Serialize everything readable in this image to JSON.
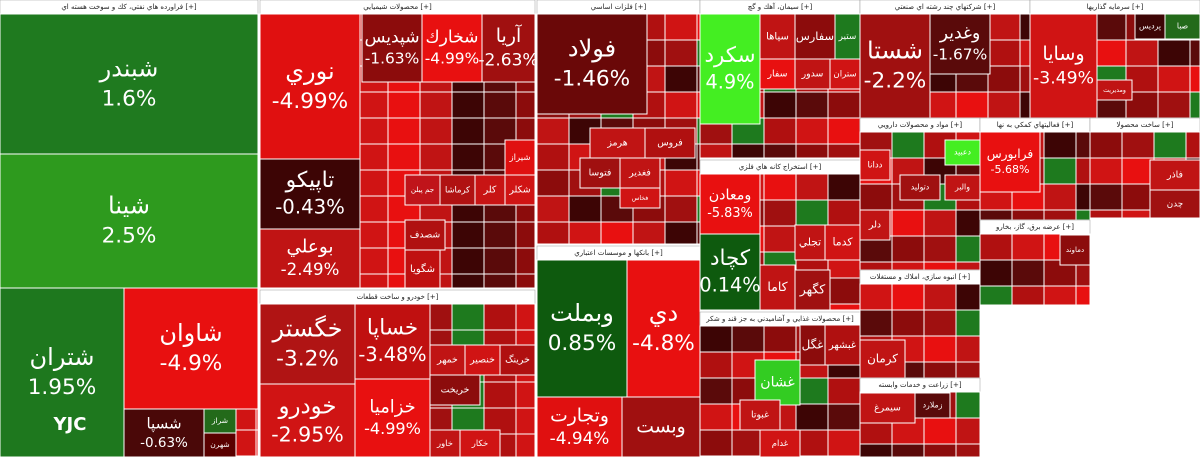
{
  "watermark": "YJC",
  "sectors": [
    {
      "title": "فراورده هاي نفتي، كك و سوخت هسته اي [+]",
      "tiles": [
        {
          "label": "شبندر",
          "change": "1.6%",
          "color": "#1f7a1f"
        },
        {
          "label": "شينا",
          "change": "2.5%",
          "color": "#2e9a1e"
        },
        {
          "label": "شتران",
          "change": "1.95%",
          "color": "#1e781e"
        },
        {
          "label": "شاوان",
          "change": "-4.9%",
          "color": "#e81010"
        },
        {
          "label": "شسپا",
          "change": "-0.63%",
          "color": "#4a0808"
        },
        {
          "label": "شراز",
          "color": "#236a1a"
        },
        {
          "label": "شهرن",
          "color": "#5a0000"
        }
      ]
    },
    {
      "title": "محصولات شيميايي [+]",
      "tiles": [
        {
          "label": "نوري",
          "change": "-4.99%",
          "color": "#e01010"
        },
        {
          "label": "تاپيكو",
          "change": "-0.43%",
          "color": "#3d0505"
        },
        {
          "label": "بوعلي",
          "change": "-2.49%",
          "color": "#c01414"
        },
        {
          "label": "شپديس",
          "change": "-1.63%",
          "color": "#8c0c0c"
        },
        {
          "label": "شخارك",
          "change": "-4.99%",
          "color": "#e81010"
        },
        {
          "label": "آريا",
          "change": "-2.63%",
          "color": "#a01010"
        },
        {
          "label": "جم پيلن",
          "color": "#c0141a"
        },
        {
          "label": "كرماشا",
          "color": "#b01212"
        },
        {
          "label": "كلر",
          "color": "#c81414"
        },
        {
          "label": "شكلر",
          "color": "#d01414"
        },
        {
          "label": "شيراز",
          "color": "#e01010"
        },
        {
          "label": "شصدف",
          "color": "#b01010"
        },
        {
          "label": "شگويا",
          "color": "#c01010"
        }
      ]
    },
    {
      "title": "خودرو و ساخت قطعات [+]",
      "tiles": [
        {
          "label": "خگستر",
          "change": "-3.2%",
          "color": "#b01414"
        },
        {
          "label": "خودرو",
          "change": "-2.95%",
          "color": "#d01414"
        },
        {
          "label": "خساپا",
          "change": "-3.48%",
          "color": "#c01010"
        },
        {
          "label": "خزاميا",
          "change": "-4.99%",
          "color": "#e81010"
        },
        {
          "label": "خمهر",
          "color": "#c01414"
        },
        {
          "label": "خنصير",
          "color": "#d01414"
        },
        {
          "label": "خرينگ",
          "color": "#b01010"
        },
        {
          "label": "خريخت",
          "color": "#8c0c0c"
        },
        {
          "label": "خاور",
          "color": "#c01414"
        },
        {
          "label": "خكار",
          "color": "#d01414"
        }
      ]
    },
    {
      "title": "فلزات اساسي [+]",
      "tiles": [
        {
          "label": "فولاد",
          "change": "-1.46%",
          "color": "#6a0808"
        },
        {
          "label": "هرمز",
          "color": "#c01414"
        },
        {
          "label": "فروس",
          "color": "#b01010"
        },
        {
          "label": "فتوسا",
          "color": "#a01010"
        },
        {
          "label": "فغدير",
          "color": "#c01414"
        },
        {
          "label": "فخاس",
          "color": "#d01414"
        }
      ]
    },
    {
      "title": "بانكها و موسسات اعتباري [+]",
      "tiles": [
        {
          "label": "وبملت",
          "change": "0.85%",
          "color": "#0e5a0e"
        },
        {
          "label": "دي",
          "change": "-4.8%",
          "color": "#e81010"
        },
        {
          "label": "وتجارت",
          "change": "-4.94%",
          "color": "#e01010"
        },
        {
          "label": "وبست",
          "color": "#a01010"
        }
      ]
    },
    {
      "title": "سيمان، آهك و گچ [+]",
      "tiles": [
        {
          "label": "سكرد",
          "change": "4.9%",
          "color": "#44ee22"
        },
        {
          "label": "سياها",
          "color": "#c01414"
        },
        {
          "label": "سفارس",
          "color": "#8c0c0c"
        },
        {
          "label": "ستير",
          "color": "#1e7a1e"
        },
        {
          "label": "سفار",
          "color": "#e81010"
        },
        {
          "label": "سدور",
          "color": "#c01414"
        },
        {
          "label": "ستران",
          "color": "#d01414"
        }
      ]
    },
    {
      "title": "استخراج كانه هاي فلزي [+]",
      "tiles": [
        {
          "label": "ومعادن",
          "change": "-5.83%",
          "color": "#e81010"
        },
        {
          "label": "كچاد",
          "change": "0.14%",
          "color": "#0e5a0e"
        },
        {
          "label": "تجلي",
          "color": "#c01414"
        },
        {
          "label": "كدما",
          "color": "#d01414"
        },
        {
          "label": "كاما",
          "color": "#c01414"
        },
        {
          "label": "كگهر",
          "color": "#a01010"
        }
      ]
    },
    {
      "title": "محصولات غذايي و آشاميدني به جز قند و شكر [+]",
      "tiles": [
        {
          "label": "غشان",
          "color": "#33cc22"
        },
        {
          "label": "غگل",
          "color": "#8c0c0c"
        },
        {
          "label": "غبشهر",
          "color": "#b01010"
        },
        {
          "label": "غبوتا",
          "color": "#c01414"
        },
        {
          "label": "غدام",
          "color": "#d01414"
        }
      ]
    },
    {
      "title": "شركتهاي چند رشته اي صنعتي [+]",
      "tiles": [
        {
          "label": "شستا",
          "change": "-2.2%",
          "color": "#a01010"
        },
        {
          "label": "وغدير",
          "change": "-1.67%",
          "color": "#5a0a0a"
        }
      ]
    },
    {
      "title": "سرمايه گذاريها [+]",
      "tiles": [
        {
          "label": "وسايا",
          "change": "-3.49%",
          "color": "#d01414"
        },
        {
          "label": "پرديس",
          "color": "#3d0505"
        },
        {
          "label": "صبا",
          "color": "#236a1a"
        },
        {
          "label": "ومديريت",
          "color": "#c01414"
        }
      ]
    },
    {
      "title": "مواد و محصولات دارويي [+]",
      "tiles": [
        {
          "label": "دعبيد",
          "color": "#44ee22"
        },
        {
          "label": "والبر",
          "color": "#c01414"
        },
        {
          "label": "دتوليد",
          "color": "#a01010"
        },
        {
          "label": "ددانا",
          "color": "#d01414"
        },
        {
          "label": "دلر",
          "color": "#c01414"
        }
      ]
    },
    {
      "title": "فعاليتهاي كمكي به نها [+]",
      "tiles": [
        {
          "label": "فرابورس",
          "change": "-5.68%",
          "color": "#e81010"
        }
      ]
    },
    {
      "title": "ساخت محصولا [+]",
      "tiles": [
        {
          "label": "فاذر",
          "color": "#c01414"
        },
        {
          "label": "چدن",
          "color": "#a01010"
        }
      ]
    },
    {
      "title": "انبوه سازي، املاك و مستغلات [+]",
      "tiles": [
        {
          "label": "كرمان",
          "color": "#c01414"
        }
      ]
    },
    {
      "title": "زراعت و خدمات وابسته [+]",
      "tiles": [
        {
          "label": "زملارد",
          "color": "#5a0a0a"
        },
        {
          "label": "سيمرغ",
          "color": "#c01414"
        }
      ]
    },
    {
      "title": "عرضه برق، گاز، بخارو [+]",
      "tiles": [
        {
          "label": "دماوند",
          "color": "#8c0c0c"
        }
      ]
    }
  ]
}
